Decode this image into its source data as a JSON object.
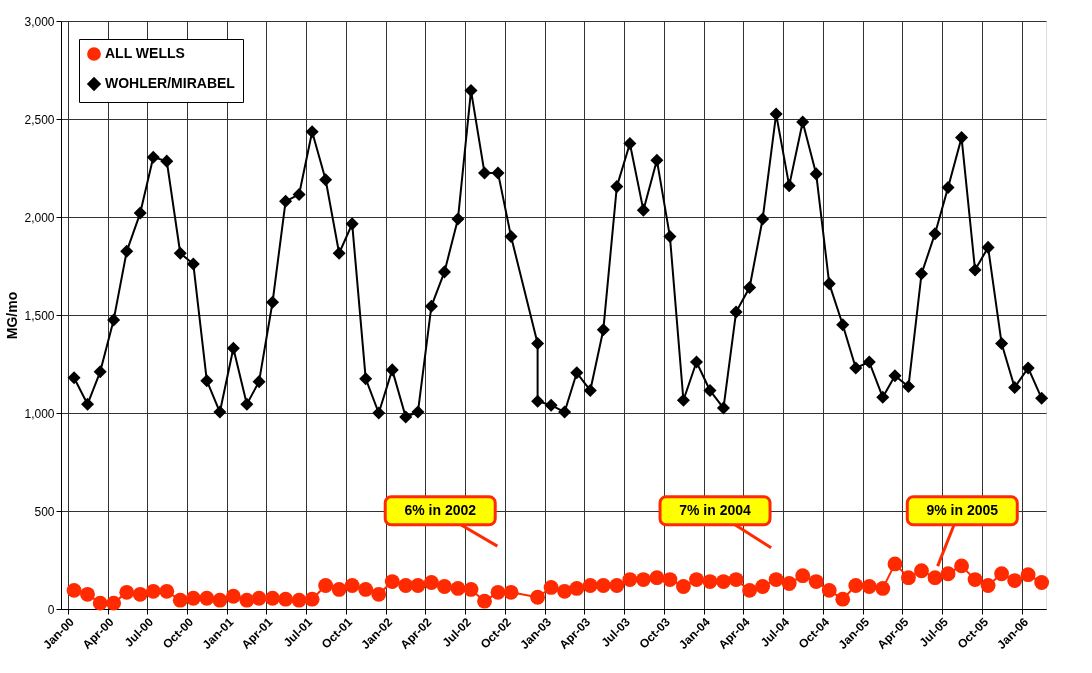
{
  "chart_data": {
    "type": "line",
    "ylabel": "MG/mo",
    "ylim": [
      0,
      3000
    ],
    "yticks": [
      0,
      500,
      {
        "value": 1000,
        "label": "1,000"
      },
      {
        "value": 1500,
        "label": "1,500"
      },
      {
        "value": 2000,
        "label": "2,000"
      },
      {
        "value": 2500,
        "label": "2,500"
      },
      {
        "value": 3000,
        "label": "3,000"
      }
    ],
    "xlim": [
      "1999-12-16",
      "2006-02-25"
    ],
    "xticks": [
      {
        "value": "2000-01-01",
        "label": "Jan-00"
      },
      {
        "value": "2000-04-01",
        "label": "Apr-00"
      },
      {
        "value": "2000-07-01",
        "label": "Jul-00"
      },
      {
        "value": "2000-10-01",
        "label": "Oct-00"
      },
      {
        "value": "2001-01-01",
        "label": "Jan-01"
      },
      {
        "value": "2001-04-01",
        "label": "Apr-01"
      },
      {
        "value": "2001-07-01",
        "label": "Jul-01"
      },
      {
        "value": "2001-10-01",
        "label": "Oct-01"
      },
      {
        "value": "2002-01-01",
        "label": "Jan-02"
      },
      {
        "value": "2002-04-01",
        "label": "Apr-02"
      },
      {
        "value": "2002-07-01",
        "label": "Jul-02"
      },
      {
        "value": "2002-10-01",
        "label": "Oct-02"
      },
      {
        "value": "2003-01-01",
        "label": "Jan-03"
      },
      {
        "value": "2003-04-01",
        "label": "Apr-03"
      },
      {
        "value": "2003-07-01",
        "label": "Jul-03"
      },
      {
        "value": "2003-10-01",
        "label": "Oct-03"
      },
      {
        "value": "2004-01-01",
        "label": "Jan-04"
      },
      {
        "value": "2004-04-01",
        "label": "Apr-04"
      },
      {
        "value": "2004-07-01",
        "label": "Jul-04"
      },
      {
        "value": "2004-10-01",
        "label": "Oct-04"
      },
      {
        "value": "2005-01-01",
        "label": "Jan-05"
      },
      {
        "value": "2005-04-01",
        "label": "Apr-05"
      },
      {
        "value": "2005-07-01",
        "label": "Jul-05"
      },
      {
        "value": "2005-10-01",
        "label": "Oct-05"
      },
      {
        "value": "2006-01-01",
        "label": "Jan-06"
      }
    ],
    "grid": true,
    "legend": "top left",
    "line_style": "solid",
    "series": [
      {
        "name": "ALL WELLS",
        "color": "#ff2a00",
        "marker": "circle",
        "x": [
          "2000-01-15",
          "2000-02-15",
          "2000-03-15",
          "2000-04-15",
          "2000-05-15",
          "2000-06-15",
          "2000-07-15",
          "2000-08-15",
          "2000-09-15",
          "2000-10-15",
          "2000-11-15",
          "2000-12-15",
          "2001-01-15",
          "2001-02-15",
          "2001-03-15",
          "2001-04-15",
          "2001-05-15",
          "2001-06-15",
          "2001-07-15",
          "2001-08-15",
          "2001-09-15",
          "2001-10-15",
          "2001-11-15",
          "2001-12-15",
          "2002-01-15",
          "2002-02-15",
          "2002-03-15",
          "2002-04-15",
          "2002-05-15",
          "2002-06-15",
          "2002-07-15",
          "2002-08-15",
          "2002-09-15",
          "2002-10-15",
          "2002-12-15",
          "2003-01-15",
          "2003-02-15",
          "2003-03-15",
          "2003-04-15",
          "2003-05-15",
          "2003-06-15",
          "2003-07-15",
          "2003-08-15",
          "2003-09-15",
          "2003-10-15",
          "2003-11-15",
          "2003-12-15",
          "2004-01-15",
          "2004-02-15",
          "2004-03-15",
          "2004-04-15",
          "2004-05-15",
          "2004-06-15",
          "2004-07-15",
          "2004-08-15",
          "2004-09-15",
          "2004-10-15",
          "2004-11-15",
          "2004-12-15",
          "2005-01-15",
          "2005-02-15",
          "2005-03-15",
          "2005-04-15",
          "2005-05-15",
          "2005-06-15",
          "2005-07-15",
          "2005-08-15",
          "2005-09-15",
          "2005-10-15",
          "2005-11-15",
          "2005-12-15",
          "2006-01-15",
          "2006-02-15"
        ],
        "values": [
          95,
          75,
          30,
          30,
          85,
          75,
          90,
          90,
          45,
          55,
          55,
          45,
          65,
          45,
          55,
          55,
          50,
          45,
          50,
          120,
          100,
          120,
          100,
          75,
          140,
          120,
          120,
          135,
          115,
          105,
          100,
          40,
          85,
          85,
          60,
          110,
          90,
          105,
          120,
          120,
          120,
          150,
          150,
          160,
          150,
          115,
          150,
          140,
          140,
          150,
          95,
          115,
          150,
          130,
          170,
          140,
          95,
          50,
          120,
          115,
          105,
          230,
          160,
          195,
          160,
          180,
          220,
          150,
          120,
          180,
          145,
          175,
          135
        ]
      },
      {
        "name": "WOHLER/MIRABEL",
        "color": "#000000",
        "marker": "diamond",
        "x": [
          "2000-01-15",
          "2000-02-15",
          "2000-03-15",
          "2000-04-15",
          "2000-05-15",
          "2000-06-15",
          "2000-07-15",
          "2000-08-15",
          "2000-09-15",
          "2000-10-15",
          "2000-11-15",
          "2000-12-15",
          "2001-01-15",
          "2001-02-15",
          "2001-03-15",
          "2001-04-15",
          "2001-05-15",
          "2001-06-15",
          "2001-07-15",
          "2001-08-15",
          "2001-09-15",
          "2001-10-15",
          "2001-11-15",
          "2001-12-15",
          "2002-01-15",
          "2002-02-15",
          "2002-03-15",
          "2002-04-15",
          "2002-05-15",
          "2002-06-15",
          "2002-07-15",
          "2002-08-15",
          "2002-09-15",
          "2002-10-15",
          "2002-12-15",
          "2002-12-15",
          "2003-01-15",
          "2003-02-15",
          "2003-03-15",
          "2003-04-15",
          "2003-05-15",
          "2003-06-15",
          "2003-07-15",
          "2003-08-15",
          "2003-09-15",
          "2003-10-15",
          "2003-11-15",
          "2003-12-15",
          "2004-01-15",
          "2004-02-15",
          "2004-03-15",
          "2004-04-15",
          "2004-05-15",
          "2004-06-15",
          "2004-07-15",
          "2004-08-15",
          "2004-09-15",
          "2004-10-15",
          "2004-11-15",
          "2004-12-15",
          "2005-01-15",
          "2005-02-15",
          "2005-03-15",
          "2005-04-15",
          "2005-05-15",
          "2005-06-15",
          "2005-07-15",
          "2005-08-15",
          "2005-09-15",
          "2005-10-15",
          "2005-11-15",
          "2005-12-15",
          "2006-01-15",
          "2006-02-15"
        ],
        "values": [
          1180,
          1045,
          1210,
          1475,
          1825,
          2020,
          2305,
          2285,
          1815,
          1760,
          1165,
          1005,
          1330,
          1045,
          1160,
          1565,
          2080,
          2115,
          2435,
          2190,
          1815,
          1965,
          1175,
          1000,
          1220,
          980,
          1005,
          1545,
          1720,
          1990,
          2645,
          2225,
          2225,
          1900,
          1355,
          1060,
          1040,
          1005,
          1205,
          1115,
          1425,
          2155,
          2375,
          2035,
          2290,
          1900,
          1065,
          1260,
          1115,
          1025,
          1515,
          1640,
          1990,
          2525,
          2160,
          2485,
          2220,
          1660,
          1450,
          1230,
          1260,
          1080,
          1190,
          1135,
          1710,
          1915,
          2150,
          2405,
          1730,
          1845,
          1355,
          1130,
          1230,
          1075
        ]
      }
    ],
    "annotations": [
      "6% in 2002",
      "7% in 2004",
      "9% in 2005"
    ]
  }
}
